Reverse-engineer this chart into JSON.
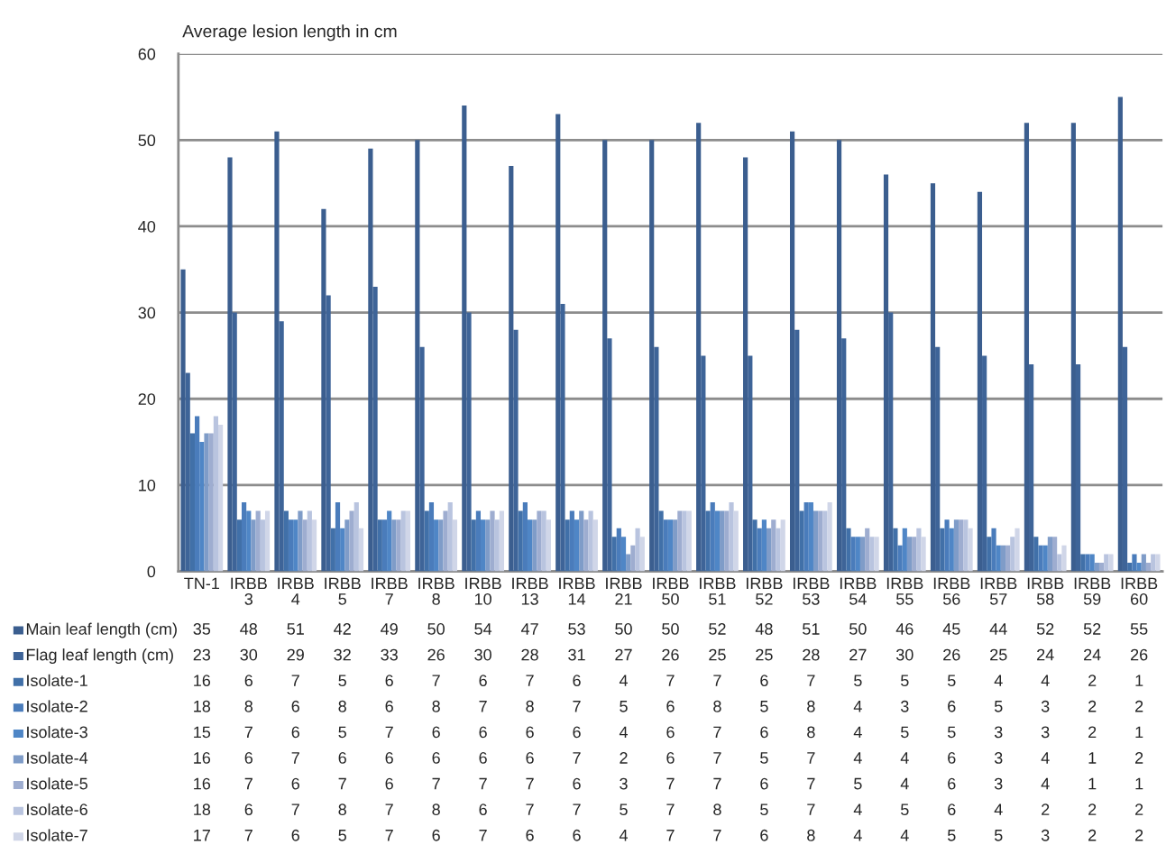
{
  "chart_data": {
    "type": "bar",
    "title": "Average lesion length in cm",
    "categories": [
      "TN-1",
      "IRBB 3",
      "IRBB 4",
      "IRBB 5",
      "IRBB 7",
      "IRBB 8",
      "IRBB 10",
      "IRBB 13",
      "IRBB 14",
      "IRBB 21",
      "IRBB 50",
      "IRBB 51",
      "IRBB 52",
      "IRBB 53",
      "IRBB 54",
      "IRBB 55",
      "IRBB 56",
      "IRBB 57",
      "IRBB 58",
      "IRBB 59",
      "IRBB 60"
    ],
    "series": [
      {
        "name": "Main leaf length (cm)",
        "color": "#3b5e8f",
        "values": [
          35,
          48,
          51,
          42,
          49,
          50,
          54,
          47,
          53,
          50,
          50,
          52,
          48,
          51,
          50,
          46,
          45,
          44,
          52,
          52,
          55
        ]
      },
      {
        "name": "Flag leaf length (cm)",
        "color": "#3e6498",
        "values": [
          23,
          30,
          29,
          32,
          33,
          26,
          30,
          28,
          31,
          27,
          26,
          25,
          25,
          28,
          27,
          30,
          26,
          25,
          24,
          24,
          26
        ]
      },
      {
        "name": "Isolate-1",
        "color": "#4170a8",
        "values": [
          16,
          6,
          7,
          5,
          6,
          7,
          6,
          7,
          6,
          4,
          7,
          7,
          6,
          7,
          5,
          5,
          5,
          4,
          4,
          2,
          1
        ]
      },
      {
        "name": "Isolate-2",
        "color": "#4a7cbb",
        "values": [
          18,
          8,
          6,
          8,
          6,
          8,
          7,
          8,
          7,
          5,
          6,
          8,
          5,
          8,
          4,
          3,
          6,
          5,
          3,
          2,
          2
        ]
      },
      {
        "name": "Isolate-3",
        "color": "#4f86c6",
        "values": [
          15,
          7,
          6,
          5,
          7,
          6,
          6,
          6,
          6,
          4,
          6,
          7,
          6,
          8,
          4,
          5,
          5,
          3,
          3,
          2,
          1
        ]
      },
      {
        "name": "Isolate-4",
        "color": "#7f9cc8",
        "values": [
          16,
          6,
          7,
          6,
          6,
          6,
          6,
          6,
          7,
          2,
          6,
          7,
          5,
          7,
          4,
          4,
          6,
          3,
          4,
          1,
          2
        ]
      },
      {
        "name": "Isolate-5",
        "color": "#9eadd0",
        "values": [
          16,
          7,
          6,
          7,
          6,
          7,
          7,
          7,
          6,
          3,
          7,
          7,
          6,
          7,
          5,
          4,
          6,
          3,
          4,
          1,
          1
        ]
      },
      {
        "name": "Isolate-6",
        "color": "#b9c4df",
        "values": [
          18,
          6,
          7,
          8,
          7,
          8,
          6,
          7,
          7,
          5,
          7,
          8,
          5,
          7,
          4,
          5,
          6,
          4,
          2,
          2,
          2
        ]
      },
      {
        "name": "Isolate-7",
        "color": "#d0d6e8",
        "values": [
          17,
          7,
          6,
          5,
          7,
          6,
          7,
          6,
          6,
          4,
          7,
          7,
          6,
          8,
          4,
          4,
          5,
          5,
          3,
          2,
          2
        ]
      }
    ],
    "ylim": [
      0,
      60
    ],
    "yticks": [
      0,
      10,
      20,
      30,
      40,
      50,
      60
    ],
    "grid": "y",
    "legend": "bottom left",
    "data_labels": true
  }
}
